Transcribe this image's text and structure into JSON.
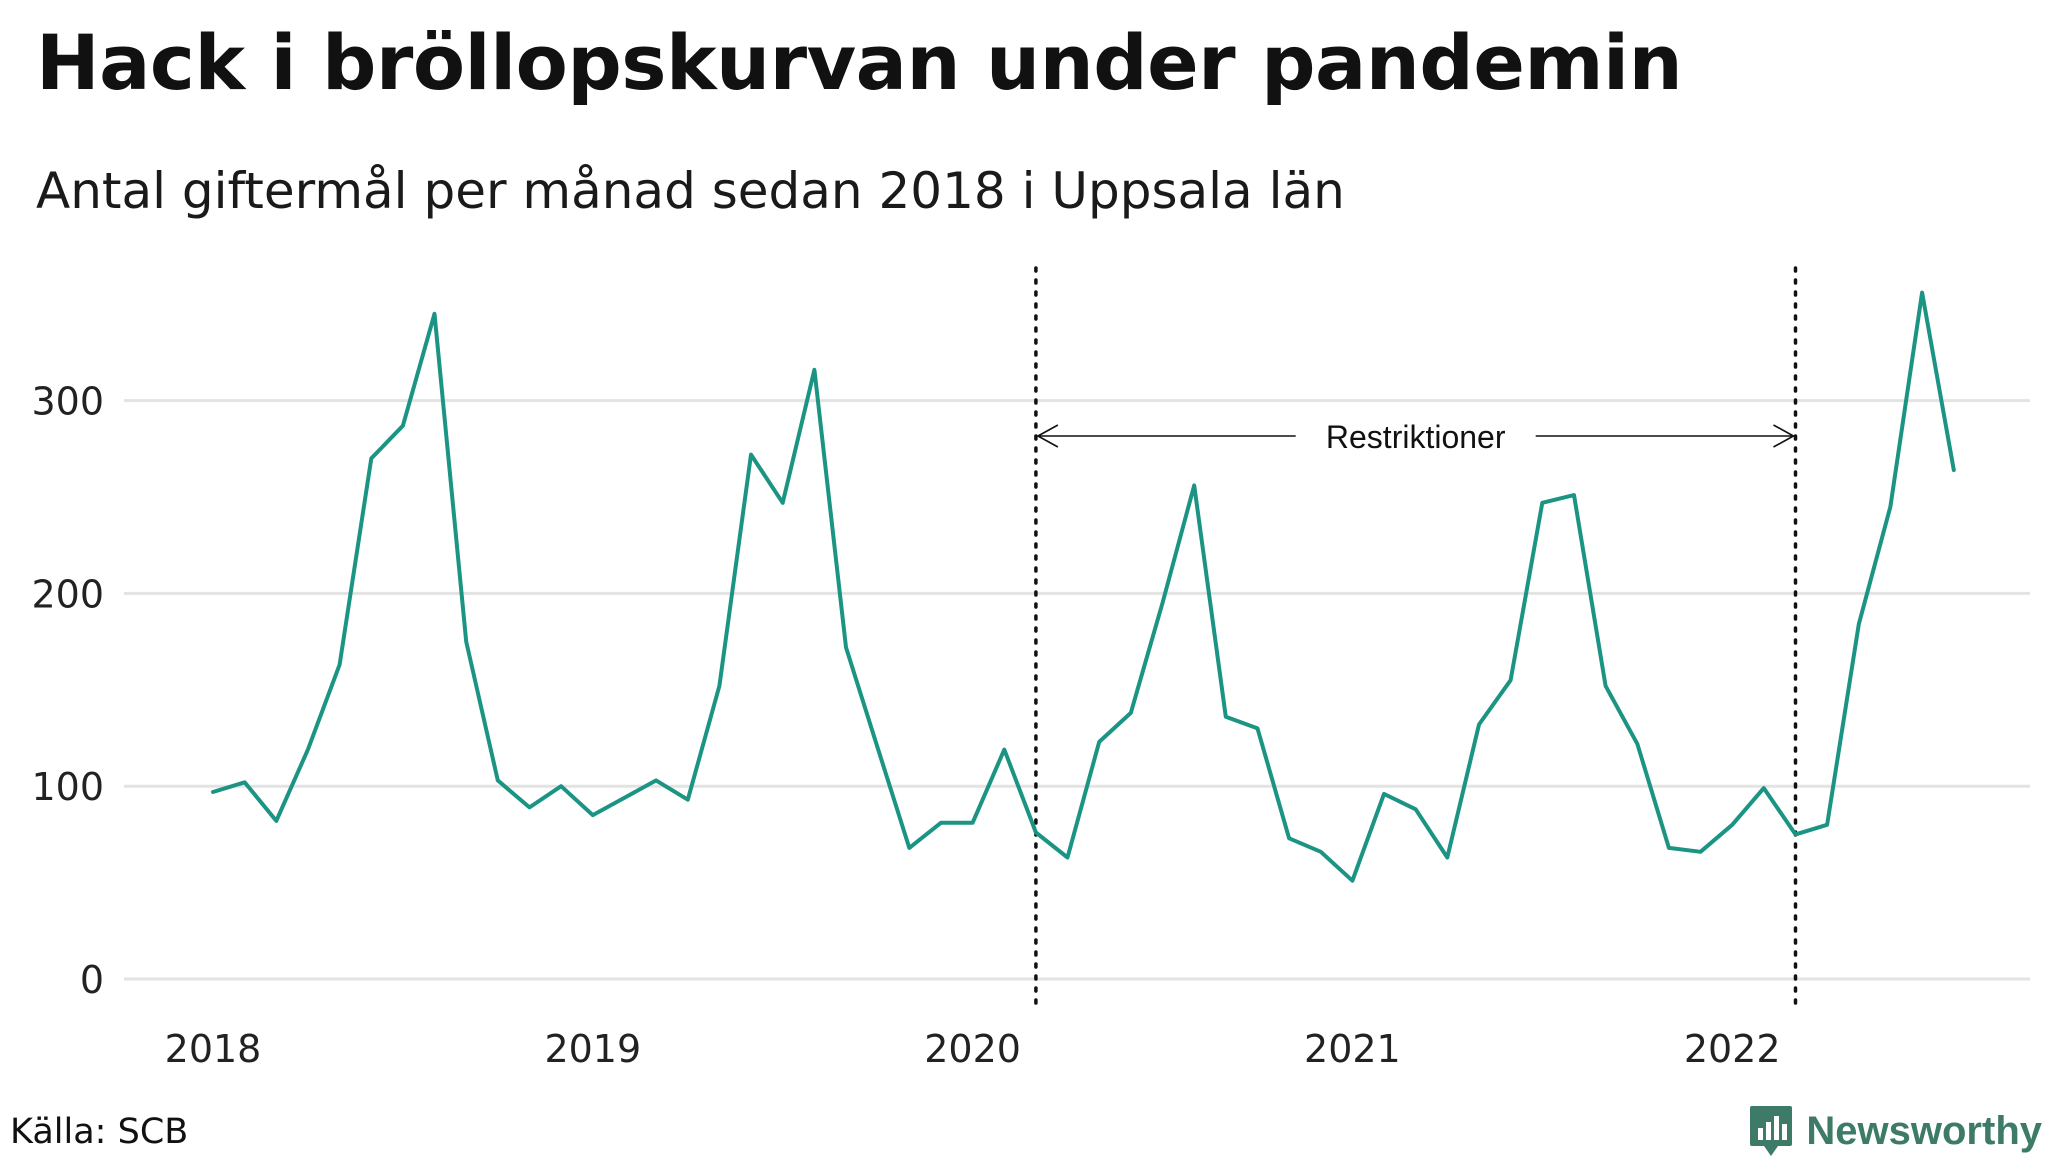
{
  "title": "Hack i bröllopskurvan under pandemin",
  "subtitle": "Antal giftermål per månad sedan 2018 i Uppsala län",
  "source": "Källa: SCB",
  "brand": "Newsworthy",
  "colors": {
    "line": "#1b9484",
    "grid": "#e3e3e3",
    "brand": "#3d7a68"
  },
  "chart_data": {
    "type": "line",
    "x_start": "2018-01",
    "x_ticks": [
      "2018",
      "2019",
      "2020",
      "2021",
      "2022"
    ],
    "y_ticks": [
      "0",
      "100",
      "200",
      "300"
    ],
    "ylim": [
      0,
      360
    ],
    "grid": true,
    "series": [
      {
        "values": [
          97,
          102,
          82,
          119,
          163,
          270,
          287,
          345,
          175,
          103,
          89,
          100,
          85,
          94,
          103,
          93,
          152,
          272,
          247,
          316,
          172,
          120,
          68,
          81,
          81,
          119,
          76,
          63,
          123,
          138,
          195,
          256,
          136,
          130,
          73,
          66,
          51,
          96,
          88,
          63,
          132,
          155,
          247,
          251,
          152,
          122,
          68,
          66,
          80,
          99,
          75,
          80,
          184,
          245,
          356,
          264
        ]
      }
    ],
    "annotations": [
      {
        "type": "vline",
        "x": "2020-03"
      },
      {
        "type": "vline",
        "x": "2022-03"
      },
      {
        "type": "arrow-span",
        "from": "2020-03",
        "to": "2022-03",
        "label": "Restriktioner"
      }
    ]
  }
}
